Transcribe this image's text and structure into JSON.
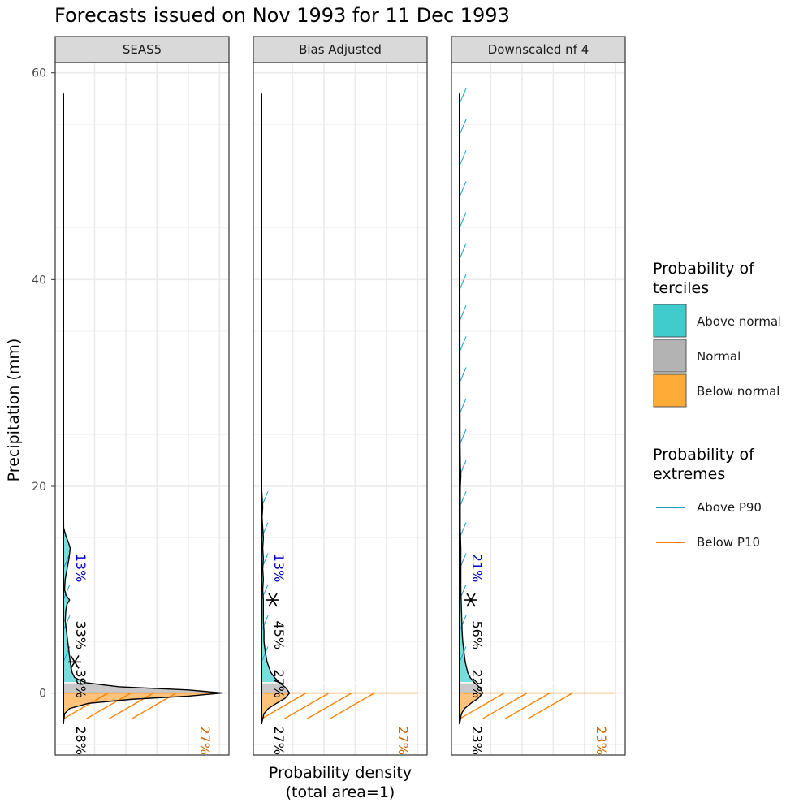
{
  "chart_data": {
    "type": "area",
    "title": "Forecasts issued on Nov 1993 for 11 Dec 1993",
    "ylabel": "Precipitation (mm)",
    "xlabel_line1": "Probability density",
    "xlabel_line2": "(total area=1)",
    "ylim": [
      -6,
      61
    ],
    "y_ticks": [
      0,
      20,
      40,
      60
    ],
    "grid": true,
    "panels": [
      {
        "name": "SEAS5",
        "xmax": 0.26,
        "lower_tercile": 1.0,
        "upper_tercile": 1.0,
        "p10": 0,
        "p90": 14,
        "observed": 3.0,
        "density": [
          [
            -3,
            0
          ],
          [
            -2,
            0.002
          ],
          [
            -1.5,
            0.01
          ],
          [
            -1,
            0.04
          ],
          [
            -0.6,
            0.11
          ],
          [
            -0.3,
            0.2
          ],
          [
            0,
            0.255
          ],
          [
            0.3,
            0.2
          ],
          [
            0.6,
            0.09
          ],
          [
            1,
            0.035
          ],
          [
            1.5,
            0.018
          ],
          [
            2,
            0.014
          ],
          [
            3,
            0.011
          ],
          [
            4,
            0.009
          ],
          [
            5,
            0.007
          ],
          [
            6,
            0.005
          ],
          [
            7,
            0.003
          ],
          [
            8,
            0.004
          ],
          [
            8.6,
            0.006
          ],
          [
            9,
            0.01
          ],
          [
            9.5,
            0.004
          ],
          [
            10,
            0.002
          ],
          [
            11,
            0.003
          ],
          [
            12,
            0.006
          ],
          [
            13,
            0.009
          ],
          [
            14,
            0.011
          ],
          [
            14.6,
            0.008
          ],
          [
            15.2,
            0.004
          ],
          [
            16,
            0.0005
          ],
          [
            20,
            0
          ],
          [
            40,
            0
          ],
          [
            58,
            0
          ]
        ],
        "labels": {
          "extreme_high": "13%",
          "above": "33%",
          "normal": "39%",
          "below": "28%",
          "extreme_low": "27%"
        }
      },
      {
        "name": "Bias Adjusted",
        "xmax": 0.26,
        "lower_tercile": 1.0,
        "upper_tercile": 1.0,
        "p10": 0,
        "p90": 20,
        "observed": 9.0,
        "density": [
          [
            -3,
            0
          ],
          [
            -2,
            0.004
          ],
          [
            -1.5,
            0.011
          ],
          [
            -1,
            0.024
          ],
          [
            -0.5,
            0.038
          ],
          [
            0,
            0.045
          ],
          [
            0.5,
            0.039
          ],
          [
            1,
            0.029
          ],
          [
            1.5,
            0.021
          ],
          [
            2,
            0.015
          ],
          [
            3,
            0.009
          ],
          [
            4,
            0.006
          ],
          [
            5,
            0.004
          ],
          [
            6,
            0.004
          ],
          [
            7,
            0.003
          ],
          [
            8,
            0.003
          ],
          [
            9,
            0.003
          ],
          [
            10,
            0.002
          ],
          [
            11,
            0.003
          ],
          [
            12,
            0.002
          ],
          [
            13,
            0.003
          ],
          [
            14,
            0.002
          ],
          [
            15,
            0.003
          ],
          [
            16,
            0.002
          ],
          [
            17,
            0.001
          ],
          [
            18,
            0.002
          ],
          [
            19,
            0.001
          ],
          [
            20,
            0
          ],
          [
            40,
            0
          ],
          [
            58,
            0
          ]
        ],
        "labels": {
          "extreme_high": "13%",
          "above": "45%",
          "normal": "27%",
          "below": "27%",
          "extreme_low": "27%"
        }
      },
      {
        "name": "Downscaled nf 4",
        "xmax": 0.26,
        "lower_tercile": 1.0,
        "upper_tercile": 1.0,
        "p10": 0,
        "p90": 58,
        "observed": 9.0,
        "density": [
          [
            -3,
            0
          ],
          [
            -2,
            0.003
          ],
          [
            -1.5,
            0.008
          ],
          [
            -1,
            0.018
          ],
          [
            -0.5,
            0.03
          ],
          [
            0,
            0.037
          ],
          [
            0.5,
            0.033
          ],
          [
            1,
            0.024
          ],
          [
            1.5,
            0.017
          ],
          [
            2,
            0.013
          ],
          [
            3,
            0.009
          ],
          [
            4,
            0.007
          ],
          [
            5,
            0.005
          ],
          [
            6,
            0.004
          ],
          [
            8,
            0.003
          ],
          [
            10,
            0.002
          ],
          [
            12,
            0.002
          ],
          [
            14,
            0.002
          ],
          [
            16,
            0.001
          ],
          [
            18,
            0.001
          ],
          [
            20,
            0.0012
          ],
          [
            21,
            0.002
          ],
          [
            22,
            0.0012
          ],
          [
            24,
            0.0008
          ],
          [
            28,
            0.0006
          ],
          [
            32,
            0.0005
          ],
          [
            36,
            0.0005
          ],
          [
            40,
            0.0004
          ],
          [
            45,
            0.0003
          ],
          [
            50,
            0.0002
          ],
          [
            55,
            0.0001
          ],
          [
            58,
            0
          ]
        ],
        "labels": {
          "extreme_high": "21%",
          "above": "56%",
          "normal": "22%",
          "below": "23%",
          "extreme_low": "23%"
        }
      }
    ],
    "legend": {
      "terciles_title_line1": "Probability of",
      "terciles_title_line2": "terciles",
      "terciles": [
        {
          "label": "Above normal",
          "color": "#40CCCC"
        },
        {
          "label": "Normal",
          "color": "#B3B3B3"
        },
        {
          "label": "Below normal",
          "color": "#FFAB38"
        }
      ],
      "extremes_title_line1": "Probability of",
      "extremes_title_line2": "extremes",
      "extremes": [
        {
          "label": "Above P90",
          "color": "#1A9CC7"
        },
        {
          "label": "Below P10",
          "color": "#FF8000"
        }
      ]
    },
    "colors": {
      "extreme_high_text": "#0000CC",
      "extreme_low_text": "#CC6600",
      "above_fill": "#7ADDDD",
      "normal_fill": "#C8C8C8",
      "below_fill": "#FFC27A",
      "strip_bg": "#D9D9D9"
    }
  }
}
